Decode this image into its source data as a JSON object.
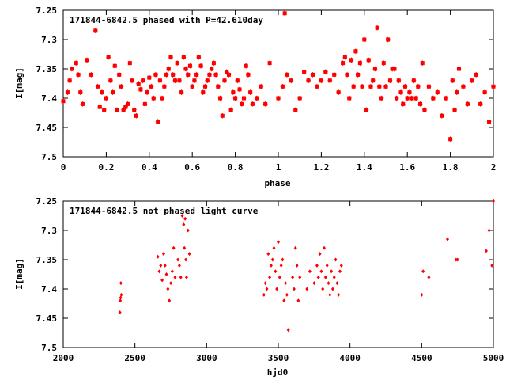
{
  "chart_data": [
    {
      "type": "scatter",
      "title": "171844-6842.5 phased with P=42.610day",
      "xlabel": "phase",
      "ylabel": "I[mag]",
      "xlim": [
        0,
        2
      ],
      "ylim": [
        7.25,
        7.5
      ],
      "y_inverted": true,
      "xticks": [
        "0",
        "0.2",
        "0.4",
        "0.6",
        "0.8",
        "1",
        "1.2",
        "1.4",
        "1.6",
        "1.8",
        "2"
      ],
      "yticks": [
        "7.25",
        "7.3",
        "7.35",
        "7.4",
        "7.45",
        "7.5"
      ],
      "marker_color": "#ff0000",
      "series": [
        {
          "x": [
            0.0,
            0.02,
            0.03,
            0.04,
            0.06,
            0.07,
            0.08,
            0.09,
            0.11,
            0.13,
            0.15,
            0.16,
            0.17,
            0.18,
            0.19,
            0.2,
            0.21,
            0.22,
            0.23,
            0.24,
            0.25,
            0.26,
            0.27,
            0.28,
            0.29,
            0.3,
            0.31,
            0.32,
            0.33,
            0.34,
            0.35,
            0.36,
            0.37,
            0.38,
            0.39,
            0.4,
            0.41,
            0.42,
            0.43,
            0.44,
            0.45,
            0.46,
            0.47,
            0.48,
            0.49,
            0.5,
            0.51,
            0.52,
            0.53,
            0.54,
            0.55,
            0.56,
            0.57,
            0.58,
            0.59,
            0.6,
            0.61,
            0.62,
            0.63,
            0.64,
            0.65,
            0.66,
            0.67,
            0.68,
            0.69,
            0.7,
            0.71,
            0.72,
            0.73,
            0.74,
            0.75,
            0.76,
            0.77,
            0.78,
            0.79,
            0.8,
            0.81,
            0.82,
            0.83,
            0.84,
            0.85,
            0.86,
            0.87,
            0.88,
            0.9,
            0.92,
            0.94,
            0.96,
            1.0,
            1.02,
            1.03,
            1.04,
            1.06,
            1.08,
            1.1,
            1.12,
            1.14,
            1.16,
            1.18,
            1.2,
            1.22,
            1.24,
            1.26,
            1.28,
            1.3,
            1.31,
            1.32,
            1.33,
            1.34,
            1.35,
            1.36,
            1.37,
            1.38,
            1.39,
            1.4,
            1.41,
            1.42,
            1.43,
            1.44,
            1.45,
            1.46,
            1.47,
            1.48,
            1.49,
            1.5,
            1.51,
            1.52,
            1.53,
            1.54,
            1.55,
            1.56,
            1.57,
            1.58,
            1.59,
            1.6,
            1.61,
            1.62,
            1.63,
            1.64,
            1.65,
            1.66,
            1.67,
            1.68,
            1.7,
            1.72,
            1.74,
            1.76,
            1.78,
            1.8,
            1.81,
            1.82,
            1.83,
            1.84,
            1.86,
            1.88,
            1.9,
            1.92,
            1.94,
            1.96,
            1.98,
            2.0
          ],
          "y": [
            7.405,
            7.39,
            7.37,
            7.35,
            7.34,
            7.36,
            7.39,
            7.41,
            7.335,
            7.36,
            7.285,
            7.38,
            7.415,
            7.39,
            7.42,
            7.4,
            7.33,
            7.37,
            7.39,
            7.345,
            7.42,
            7.36,
            7.38,
            7.42,
            7.415,
            7.41,
            7.34,
            7.37,
            7.42,
            7.43,
            7.375,
            7.385,
            7.37,
            7.41,
            7.39,
            7.365,
            7.38,
            7.4,
            7.36,
            7.44,
            7.37,
            7.4,
            7.38,
            7.36,
            7.35,
            7.33,
            7.36,
            7.37,
            7.34,
            7.37,
            7.39,
            7.33,
            7.35,
            7.36,
            7.345,
            7.38,
            7.37,
            7.36,
            7.33,
            7.345,
            7.39,
            7.38,
            7.37,
            7.36,
            7.35,
            7.34,
            7.36,
            7.38,
            7.4,
            7.43,
            7.37,
            7.355,
            7.36,
            7.42,
            7.39,
            7.4,
            7.37,
            7.385,
            7.41,
            7.4,
            7.345,
            7.36,
            7.39,
            7.41,
            7.4,
            7.38,
            7.41,
            7.34,
            7.4,
            7.38,
            7.255,
            7.36,
            7.37,
            7.42,
            7.4,
            7.355,
            7.37,
            7.36,
            7.38,
            7.37,
            7.355,
            7.37,
            7.36,
            7.39,
            7.34,
            7.33,
            7.36,
            7.4,
            7.335,
            7.38,
            7.32,
            7.36,
            7.34,
            7.38,
            7.3,
            7.42,
            7.335,
            7.38,
            7.37,
            7.35,
            7.28,
            7.38,
            7.4,
            7.34,
            7.38,
            7.3,
            7.37,
            7.35,
            7.35,
            7.4,
            7.37,
            7.39,
            7.41,
            7.38,
            7.4,
            7.39,
            7.4,
            7.37,
            7.4,
            7.38,
            7.41,
            7.34,
            7.42,
            7.38,
            7.4,
            7.39,
            7.43,
            7.4,
            7.47,
            7.37,
            7.42,
            7.39,
            7.35,
            7.38,
            7.41,
            7.37,
            7.36,
            7.41,
            7.39,
            7.44,
            7.38
          ]
        }
      ]
    },
    {
      "type": "scatter",
      "title": "171844-6842.5 not phased light curve",
      "xlabel": "hjd0",
      "ylabel": "I[mag]",
      "xlim": [
        2000,
        5000
      ],
      "ylim": [
        7.25,
        7.5
      ],
      "y_inverted": true,
      "xticks": [
        "2000",
        "2500",
        "3000",
        "3500",
        "4000",
        "4500",
        "5000"
      ],
      "yticks": [
        "7.25",
        "7.3",
        "7.35",
        "7.4",
        "7.45",
        "7.5"
      ],
      "marker_color": "#ff0000",
      "series": [
        {
          "x": [
            2395,
            2398,
            2400,
            2402,
            2405,
            2660,
            2670,
            2680,
            2690,
            2700,
            2710,
            2720,
            2730,
            2740,
            2750,
            2760,
            2770,
            2780,
            2800,
            2810,
            2820,
            2830,
            2840,
            2845,
            2850,
            2855,
            2860,
            2870,
            2880,
            3400,
            3410,
            3420,
            3430,
            3440,
            3450,
            3460,
            3470,
            3480,
            3490,
            3500,
            3510,
            3520,
            3530,
            3540,
            3550,
            3560,
            3570,
            3600,
            3610,
            3620,
            3630,
            3640,
            3650,
            3700,
            3720,
            3750,
            3770,
            3780,
            3790,
            3800,
            3810,
            3820,
            3830,
            3840,
            3850,
            3860,
            3870,
            3880,
            3890,
            3900,
            3910,
            3920,
            3930,
            3940,
            4500,
            4510,
            4550,
            4680,
            4740,
            4750,
            4950,
            4970,
            4990,
            5000
          ],
          "y": [
            7.44,
            7.42,
            7.415,
            7.39,
            7.41,
            7.345,
            7.37,
            7.36,
            7.385,
            7.34,
            7.36,
            7.375,
            7.4,
            7.42,
            7.39,
            7.37,
            7.33,
            7.38,
            7.35,
            7.36,
            7.38,
            7.275,
            7.29,
            7.33,
            7.28,
            7.35,
            7.38,
            7.3,
            7.34,
            7.41,
            7.39,
            7.4,
            7.34,
            7.38,
            7.36,
            7.35,
            7.33,
            7.37,
            7.4,
            7.32,
            7.38,
            7.36,
            7.35,
            7.42,
            7.39,
            7.41,
            7.47,
            7.38,
            7.4,
            7.33,
            7.36,
            7.42,
            7.38,
            7.4,
            7.37,
            7.39,
            7.36,
            7.38,
            7.34,
            7.37,
            7.4,
            7.33,
            7.38,
            7.36,
            7.39,
            7.41,
            7.37,
            7.4,
            7.38,
            7.35,
            7.39,
            7.41,
            7.37,
            7.36,
            7.41,
            7.37,
            7.38,
            7.315,
            7.35,
            7.35,
            7.335,
            7.3,
            7.36,
            7.25
          ]
        }
      ]
    }
  ]
}
